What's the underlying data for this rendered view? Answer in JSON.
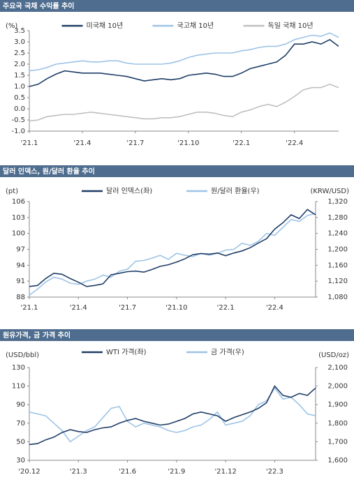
{
  "chart_data": [
    {
      "type": "line",
      "title": "주요국 국채 수익률 추이",
      "y_label": "(%)",
      "legend": "top",
      "categories": [
        "'21.1",
        null,
        null,
        null,
        null,
        null,
        "'21.4",
        null,
        null,
        null,
        null,
        null,
        "'21.7",
        null,
        null,
        null,
        null,
        null,
        "'21.10",
        null,
        null,
        null,
        null,
        null,
        "'22.1",
        null,
        null,
        null,
        null,
        null,
        "'22.4",
        null,
        null,
        null,
        null,
        null
      ],
      "ylim": [
        -1,
        3.5
      ],
      "yticks": [
        3.5,
        {
          "value": 3,
          "label": "3.0"
        },
        2.5,
        {
          "value": 2,
          "label": "2.0"
        },
        1.5,
        {
          "value": 1,
          "label": "1.0"
        },
        0.5,
        {
          "value": 0,
          "label": "0.0"
        },
        -0.5,
        {
          "value": -1,
          "label": "-1.0"
        }
      ],
      "series": [
        {
          "name": "미국채 10년",
          "color": "#1f3d66",
          "values": [
            1.0,
            1.1,
            1.35,
            1.55,
            1.7,
            1.65,
            1.6,
            1.6,
            1.6,
            1.55,
            1.5,
            1.45,
            1.35,
            1.25,
            1.3,
            1.35,
            1.3,
            1.35,
            1.5,
            1.55,
            1.6,
            1.55,
            1.45,
            1.45,
            1.6,
            1.8,
            1.9,
            2.0,
            2.1,
            2.4,
            2.9,
            2.9,
            3.0,
            2.9,
            3.1,
            2.8
          ]
        },
        {
          "name": "국고채 10년",
          "color": "#9dc3e6",
          "values": [
            1.7,
            1.75,
            1.85,
            2.0,
            2.05,
            2.1,
            2.15,
            2.1,
            2.1,
            2.15,
            2.15,
            2.05,
            2.0,
            2.0,
            2.0,
            2.0,
            2.05,
            2.15,
            2.3,
            2.4,
            2.45,
            2.5,
            2.5,
            2.5,
            2.6,
            2.65,
            2.75,
            2.8,
            2.8,
            2.9,
            3.1,
            3.2,
            3.3,
            3.25,
            3.4,
            3.2
          ]
        },
        {
          "name": "독일 국채 10년",
          "color": "#bfbfbf",
          "values": [
            -0.55,
            -0.5,
            -0.35,
            -0.3,
            -0.25,
            -0.25,
            -0.2,
            -0.15,
            -0.2,
            -0.25,
            -0.3,
            -0.35,
            -0.4,
            -0.45,
            -0.45,
            -0.4,
            -0.4,
            -0.35,
            -0.25,
            -0.15,
            -0.15,
            -0.2,
            -0.3,
            -0.35,
            -0.15,
            -0.05,
            0.1,
            0.2,
            0.1,
            0.3,
            0.55,
            0.85,
            0.95,
            0.95,
            1.1,
            0.95
          ]
        }
      ]
    },
    {
      "type": "line",
      "title": "달러 인덱스, 원/달러 환율 추이",
      "y_label": "(pt)",
      "y2_label": "(KRW/USD)",
      "legend": "top",
      "categories": [
        "'21.1",
        null,
        null,
        null,
        null,
        null,
        "'21.4",
        null,
        null,
        null,
        null,
        null,
        "'21.7",
        null,
        null,
        null,
        null,
        null,
        "'21.10",
        null,
        null,
        null,
        null,
        null,
        "'22.1",
        null,
        null,
        null,
        null,
        null,
        "'22.4",
        null,
        null,
        null,
        null,
        null
      ],
      "ylim": [
        88,
        106
      ],
      "yticks": [
        106,
        103,
        100,
        97,
        94,
        91,
        88
      ],
      "y2lim": [
        1080,
        1320
      ],
      "y2ticks": [
        {
          "value": 1320,
          "label": "1,320"
        },
        {
          "value": 1280,
          "label": "1,280"
        },
        {
          "value": 1240,
          "label": "1,240"
        },
        {
          "value": 1200,
          "label": "1,200"
        },
        {
          "value": 1160,
          "label": "1,160"
        },
        {
          "value": 1120,
          "label": "1,120"
        },
        {
          "value": 1080,
          "label": "1,080"
        }
      ],
      "series": [
        {
          "name": "달러 인덱스(좌)",
          "color": "#1f3d66",
          "values": [
            90,
            90.2,
            91.5,
            92.5,
            92.3,
            91.5,
            90.8,
            90,
            90.2,
            90.5,
            92.2,
            92.5,
            92.8,
            92.9,
            92.7,
            93.2,
            93.8,
            94.1,
            94.6,
            95.2,
            96,
            96.2,
            96.1,
            96.3,
            95.8,
            96.3,
            96.7,
            97.3,
            98.2,
            99,
            100.8,
            102,
            103.5,
            102.8,
            104.5,
            103.5
          ]
        },
        {
          "name": "원/달러 환율(우)",
          "color": "#9dc3e6",
          "axis": "y2",
          "values": [
            1085,
            1100,
            1118,
            1130,
            1125,
            1115,
            1112,
            1120,
            1125,
            1135,
            1130,
            1145,
            1150,
            1170,
            1172,
            1178,
            1185,
            1175,
            1190,
            1185,
            1182,
            1190,
            1185,
            1190,
            1198,
            1200,
            1215,
            1210,
            1220,
            1240,
            1235,
            1255,
            1275,
            1270,
            1285,
            1290
          ]
        }
      ]
    },
    {
      "type": "line",
      "title": "원유가격, 금 가격 추이",
      "y_label": "(USD/bbl)",
      "y2_label": "(USD/oz)",
      "legend": "top",
      "categories": [
        "'20.12",
        null,
        null,
        null,
        null,
        null,
        "'21.3",
        null,
        null,
        null,
        null,
        null,
        "'21.6",
        null,
        null,
        null,
        null,
        null,
        "'21.9",
        null,
        null,
        null,
        null,
        null,
        "'21.12",
        null,
        null,
        null,
        null,
        null,
        "'22.3",
        null,
        null,
        null,
        null,
        null
      ],
      "ylim": [
        30,
        130
      ],
      "yticks": [
        130,
        110,
        90,
        70,
        50,
        30
      ],
      "y2lim": [
        1600,
        2100
      ],
      "y2ticks": [
        {
          "value": 2100,
          "label": "2,100"
        },
        {
          "value": 2000,
          "label": "2,000"
        },
        {
          "value": 1900,
          "label": "1,900"
        },
        {
          "value": 1800,
          "label": "1,800"
        },
        {
          "value": 1700,
          "label": "1,700"
        },
        {
          "value": 1600,
          "label": "1,600"
        }
      ],
      "series": [
        {
          "name": "WTI 가격(좌)",
          "color": "#1f3d66",
          "values": [
            47,
            48,
            52,
            55,
            60,
            63,
            61,
            60,
            63,
            65,
            66,
            70,
            73,
            75,
            72,
            70,
            68,
            69,
            72,
            75,
            80,
            82,
            80,
            78,
            72,
            76,
            79,
            82,
            86,
            92,
            110,
            100,
            98,
            102,
            100,
            108
          ]
        },
        {
          "name": "금 가격(우)",
          "color": "#9dc3e6",
          "axis": "y2",
          "values": [
            1860,
            1850,
            1840,
            1800,
            1760,
            1700,
            1730,
            1760,
            1780,
            1830,
            1880,
            1890,
            1810,
            1780,
            1800,
            1790,
            1780,
            1760,
            1750,
            1760,
            1780,
            1790,
            1820,
            1860,
            1790,
            1800,
            1810,
            1840,
            1900,
            1920,
            1990,
            1930,
            1940,
            1900,
            1850,
            1840
          ]
        }
      ]
    }
  ]
}
